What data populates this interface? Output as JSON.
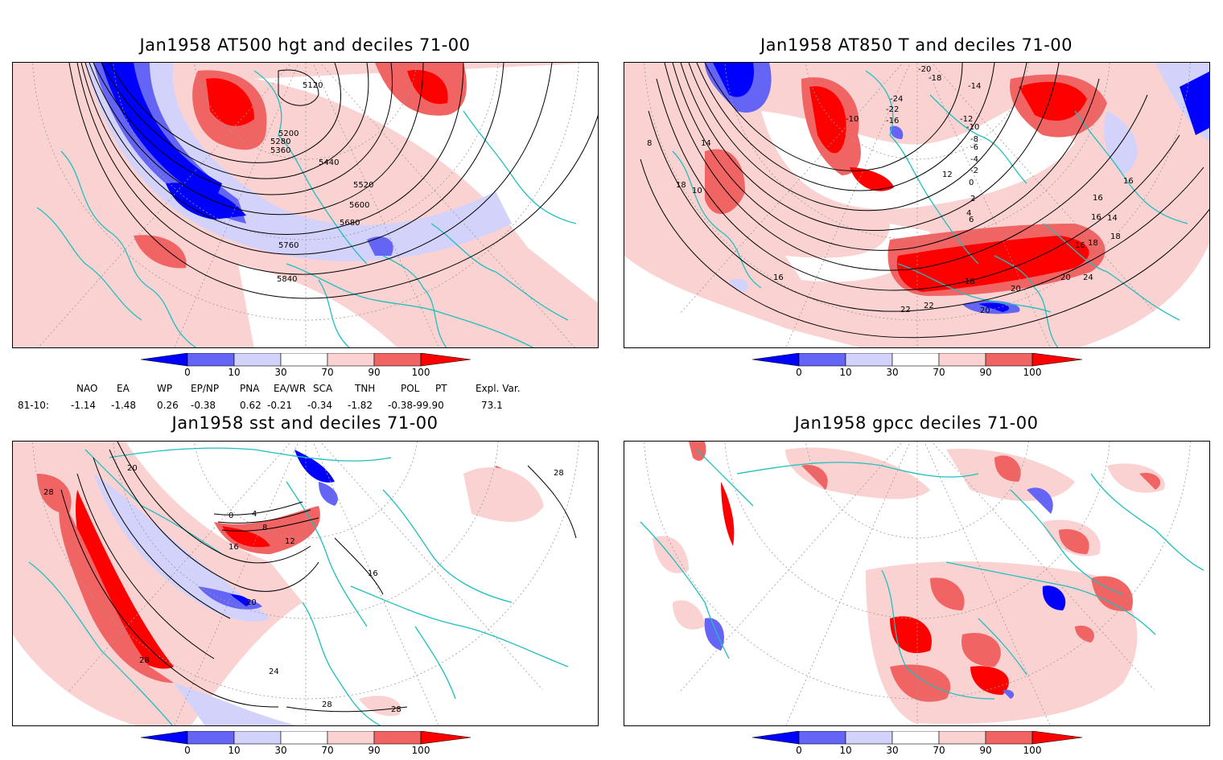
{
  "panels": [
    {
      "title": "Jan1958 AT500 hgt and deciles 71-00",
      "contour_labels": [
        "5120",
        "5200",
        "5280",
        "5360",
        "5440",
        "5520",
        "5600",
        "5680",
        "5760",
        "5840"
      ]
    },
    {
      "title": "Jan1958 AT850 T and deciles 71-00",
      "contour_labels": [
        "-20",
        "-18",
        "-14",
        "-24",
        "-22",
        "-16",
        "-10",
        "-12",
        "-10",
        "-8",
        "-6",
        "-4",
        "-2",
        "0",
        "2",
        "4",
        "6",
        "8",
        "10",
        "12",
        "14",
        "16",
        "16",
        "18",
        "16",
        "18",
        "20",
        "22",
        "24",
        "22",
        "20",
        "20",
        "18",
        "16",
        "14",
        "18",
        "16"
      ]
    },
    {
      "title": "Jan1958 sst and deciles 71-00",
      "contour_labels": [
        "28",
        "20",
        "0",
        "4",
        "8",
        "12",
        "16",
        "16",
        "20",
        "24",
        "28",
        "28",
        "28",
        "28"
      ]
    },
    {
      "title": "Jan1958 gpcc deciles 71-00",
      "contour_labels": []
    }
  ],
  "colorbar": {
    "ticks": [
      "0",
      "10",
      "30",
      "70",
      "90",
      "100"
    ],
    "colors": [
      "#0000ff",
      "#6464f5",
      "#d2d2fa",
      "#ffffff",
      "#fad2d2",
      "#f06464",
      "#ff0000"
    ]
  },
  "indices": {
    "names": [
      "NAO",
      "EA",
      "WP",
      "EP/NP",
      "PNA",
      "EA/WR",
      "SCA",
      "TNH",
      "POL",
      "PT",
      "Expl. Var."
    ],
    "row_label": "81-10:",
    "values": [
      "-1.14",
      "-1.48",
      "0.26",
      "-0.38",
      "0.62",
      "-0.21",
      "-0.34",
      "-1.82",
      "-0.38-99.90",
      "",
      "73.1"
    ]
  },
  "colors": {
    "coast": "#1fbfbf",
    "grid": "#9a9a9a",
    "frame": "#000000"
  }
}
